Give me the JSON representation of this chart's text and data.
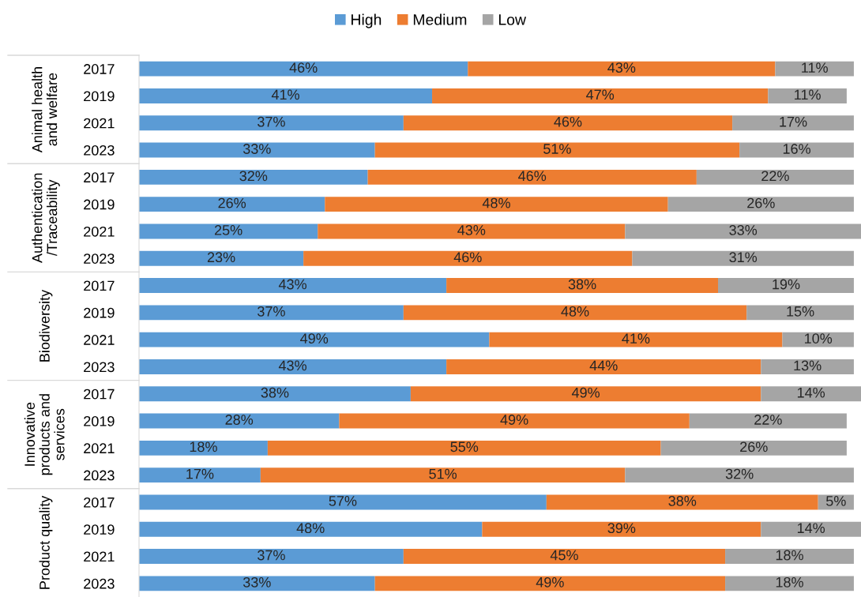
{
  "chart_data": {
    "type": "bar",
    "orientation": "horizontal",
    "stacked": true,
    "legend": "top",
    "categories": [
      "2017",
      "2019",
      "2021",
      "2023",
      "2017",
      "2019",
      "2021",
      "2023",
      "2017",
      "2019",
      "2021",
      "2023",
      "2017",
      "2019",
      "2021",
      "2023",
      "2017",
      "2019",
      "2021",
      "2023"
    ],
    "annotations": [
      "Animal health\nand welfare",
      "Authentication\n/Traceability",
      "Biodiversity",
      "Innovative\nproducts and\nservices",
      "Product quality"
    ],
    "series": [
      {
        "name": "High",
        "color": "#5b9bd5",
        "values": [
          46,
          41,
          37,
          33,
          32,
          26,
          25,
          23,
          43,
          37,
          49,
          43,
          38,
          28,
          18,
          17,
          57,
          48,
          37,
          33
        ],
        "value_labels": [
          "46%",
          "41%",
          "37%",
          "33%",
          "32%",
          "26%",
          "25%",
          "23%",
          "43%",
          "37%",
          "49%",
          "43%",
          "38%",
          "28%",
          "18%",
          "17%",
          "57%",
          "48%",
          "37%",
          "33%"
        ]
      },
      {
        "name": "Medium",
        "color": "#ed7d31",
        "values": [
          43,
          47,
          46,
          51,
          46,
          48,
          43,
          46,
          38,
          48,
          41,
          44,
          49,
          49,
          55,
          51,
          38,
          39,
          45,
          49
        ],
        "value_labels": [
          "43%",
          "47%",
          "46%",
          "51%",
          "46%",
          "48%",
          "43%",
          "46%",
          "38%",
          "48%",
          "41%",
          "44%",
          "49%",
          "49%",
          "55%",
          "51%",
          "38%",
          "39%",
          "45%",
          "49%"
        ]
      },
      {
        "name": "Low",
        "color": "#a5a5a5",
        "values": [
          11,
          11,
          17,
          16,
          22,
          26,
          33,
          31,
          19,
          15,
          10,
          13,
          14,
          22,
          26,
          32,
          5,
          14,
          18,
          18
        ],
        "value_labels": [
          "11%",
          "11%",
          "17%",
          "16%",
          "22%",
          "26%",
          "33%",
          "31%",
          "19%",
          "15%",
          "10%",
          "13%",
          "14%",
          "22%",
          "26%",
          "32%",
          "5%",
          "14%",
          "18%",
          "18%"
        ]
      }
    ]
  }
}
